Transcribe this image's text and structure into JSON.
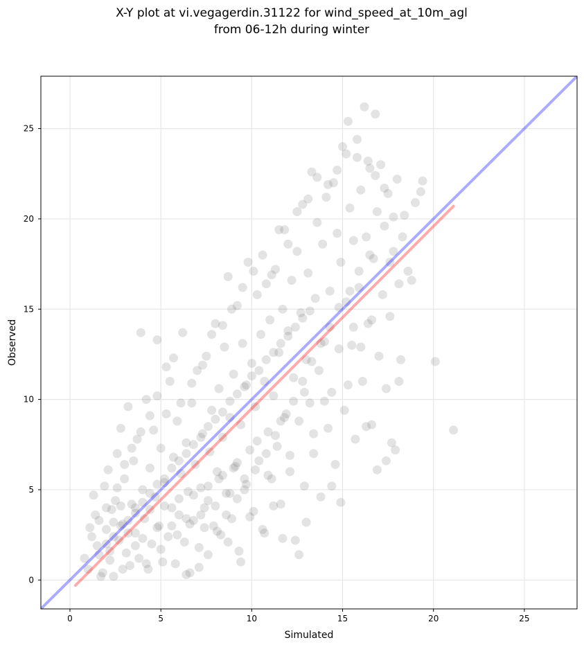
{
  "chart_data": {
    "type": "scatter",
    "title": [
      "X-Y plot at vi.vegagerdin.31122 for wind_speed_at_10m_agl",
      "from 06-12h during winter"
    ],
    "xlabel": "Simulated",
    "ylabel": "Observed",
    "xlim": [
      -1.6,
      27.9
    ],
    "ylim": [
      -1.6,
      27.9
    ],
    "xticks": [
      0,
      5,
      10,
      15,
      20,
      25
    ],
    "yticks": [
      0,
      5,
      10,
      15,
      20,
      25
    ],
    "grid": true,
    "point_color": "#666666",
    "identity_line": {
      "x": [
        -1.6,
        27.9
      ],
      "y": [
        -1.6,
        27.9
      ],
      "color": "#0000ff"
    },
    "fit_line": {
      "x": [
        0.3,
        21.1
      ],
      "y": [
        -0.3,
        20.7
      ],
      "color": "#ff0000"
    },
    "points": [
      [
        0.8,
        1.2
      ],
      [
        1.0,
        0.6
      ],
      [
        1.2,
        2.4
      ],
      [
        1.3,
        4.7
      ],
      [
        1.5,
        1.9
      ],
      [
        1.6,
        3.3
      ],
      [
        1.8,
        0.4
      ],
      [
        1.9,
        5.2
      ],
      [
        2.0,
        2.8
      ],
      [
        2.1,
        6.1
      ],
      [
        2.2,
        1.1
      ],
      [
        2.3,
        3.9
      ],
      [
        2.4,
        0.2
      ],
      [
        2.5,
        4.4
      ],
      [
        2.6,
        7.0
      ],
      [
        2.7,
        2.2
      ],
      [
        2.8,
        8.4
      ],
      [
        2.9,
        3.1
      ],
      [
        3.0,
        5.6
      ],
      [
        3.1,
        1.5
      ],
      [
        3.2,
        9.6
      ],
      [
        3.3,
        0.8
      ],
      [
        3.4,
        4.2
      ],
      [
        3.5,
        6.6
      ],
      [
        3.6,
        2.6
      ],
      [
        3.7,
        7.8
      ],
      [
        3.8,
        1.2
      ],
      [
        3.9,
        13.7
      ],
      [
        4.0,
        5.0
      ],
      [
        4.1,
        3.4
      ],
      [
        4.2,
        10.0
      ],
      [
        4.3,
        0.6
      ],
      [
        4.4,
        6.2
      ],
      [
        4.5,
        2.0
      ],
      [
        4.6,
        8.3
      ],
      [
        4.7,
        4.6
      ],
      [
        4.8,
        13.3
      ],
      [
        4.9,
        3.0
      ],
      [
        5.0,
        7.3
      ],
      [
        5.1,
        1.0
      ],
      [
        5.2,
        5.4
      ],
      [
        5.3,
        9.2
      ],
      [
        5.4,
        2.4
      ],
      [
        5.5,
        11.0
      ],
      [
        5.6,
        4.0
      ],
      [
        5.7,
        6.8
      ],
      [
        5.8,
        0.9
      ],
      [
        5.9,
        8.8
      ],
      [
        6.0,
        3.6
      ],
      [
        6.1,
        5.9
      ],
      [
        6.2,
        13.7
      ],
      [
        6.3,
        2.1
      ],
      [
        6.4,
        7.6
      ],
      [
        6.5,
        4.9
      ],
      [
        6.6,
        0.4
      ],
      [
        6.7,
        9.8
      ],
      [
        6.8,
        3.3
      ],
      [
        6.9,
        6.4
      ],
      [
        7.0,
        11.6
      ],
      [
        7.1,
        1.8
      ],
      [
        7.2,
        5.1
      ],
      [
        7.3,
        8.1
      ],
      [
        7.4,
        2.9
      ],
      [
        7.5,
        12.4
      ],
      [
        7.6,
        4.4
      ],
      [
        7.7,
        7.1
      ],
      [
        7.8,
        9.4
      ],
      [
        7.9,
        3.0
      ],
      [
        8.0,
        14.2
      ],
      [
        8.1,
        6.0
      ],
      [
        8.2,
        10.6
      ],
      [
        8.3,
        2.5
      ],
      [
        8.4,
        7.9
      ],
      [
        8.5,
        12.9
      ],
      [
        8.6,
        4.8
      ],
      [
        8.7,
        16.8
      ],
      [
        8.8,
        9.0
      ],
      [
        8.9,
        3.4
      ],
      [
        9.0,
        11.4
      ],
      [
        9.1,
        6.3
      ],
      [
        9.2,
        15.2
      ],
      [
        9.3,
        1.6
      ],
      [
        9.4,
        8.6
      ],
      [
        9.5,
        13.1
      ],
      [
        9.6,
        5.0
      ],
      [
        9.7,
        10.8
      ],
      [
        9.8,
        17.6
      ],
      [
        9.9,
        7.2
      ],
      [
        10.0,
        12.0
      ],
      [
        10.1,
        3.8
      ],
      [
        10.2,
        9.6
      ],
      [
        10.3,
        15.8
      ],
      [
        10.4,
        6.6
      ],
      [
        10.5,
        13.6
      ],
      [
        10.6,
        2.8
      ],
      [
        10.7,
        11.0
      ],
      [
        10.8,
        16.4
      ],
      [
        10.9,
        8.2
      ],
      [
        11.0,
        14.4
      ],
      [
        11.1,
        5.6
      ],
      [
        11.2,
        10.2
      ],
      [
        11.3,
        17.2
      ],
      [
        11.4,
        7.4
      ],
      [
        11.5,
        12.6
      ],
      [
        11.6,
        4.2
      ],
      [
        11.7,
        15.0
      ],
      [
        11.8,
        19.4
      ],
      [
        11.9,
        9.2
      ],
      [
        12.0,
        13.8
      ],
      [
        12.1,
        6.0
      ],
      [
        12.2,
        16.6
      ],
      [
        12.3,
        11.2
      ],
      [
        12.4,
        2.2
      ],
      [
        12.5,
        18.2
      ],
      [
        12.6,
        8.8
      ],
      [
        12.7,
        14.8
      ],
      [
        12.8,
        20.8
      ],
      [
        12.9,
        5.2
      ],
      [
        13.0,
        12.2
      ],
      [
        13.1,
        17.0
      ],
      [
        13.2,
        9.8
      ],
      [
        13.3,
        22.6
      ],
      [
        13.4,
        7.0
      ],
      [
        13.5,
        15.6
      ],
      [
        13.6,
        19.8
      ],
      [
        13.7,
        11.6
      ],
      [
        13.8,
        4.6
      ],
      [
        13.9,
        18.6
      ],
      [
        14.0,
        13.2
      ],
      [
        14.1,
        21.2
      ],
      [
        14.2,
        8.4
      ],
      [
        14.3,
        16.0
      ],
      [
        14.4,
        10.4
      ],
      [
        14.5,
        22.0
      ],
      [
        14.6,
        6.4
      ],
      [
        14.7,
        19.2
      ],
      [
        14.8,
        12.8
      ],
      [
        14.9,
        17.6
      ],
      [
        15.0,
        24.0
      ],
      [
        15.1,
        9.4
      ],
      [
        15.2,
        15.4
      ],
      [
        15.3,
        25.4
      ],
      [
        15.4,
        20.6
      ],
      [
        15.5,
        13.0
      ],
      [
        15.6,
        18.8
      ],
      [
        15.7,
        7.8
      ],
      [
        15.8,
        23.4
      ],
      [
        15.9,
        16.2
      ],
      [
        16.0,
        21.6
      ],
      [
        16.1,
        11.0
      ],
      [
        16.2,
        26.2
      ],
      [
        16.3,
        19.0
      ],
      [
        16.4,
        14.2
      ],
      [
        16.5,
        22.8
      ],
      [
        16.6,
        8.6
      ],
      [
        16.7,
        17.8
      ],
      [
        16.8,
        25.8
      ],
      [
        16.9,
        20.4
      ],
      [
        17.0,
        12.4
      ],
      [
        17.1,
        23.0
      ],
      [
        17.2,
        15.8
      ],
      [
        17.3,
        19.6
      ],
      [
        17.4,
        10.6
      ],
      [
        17.5,
        21.4
      ],
      [
        17.6,
        14.6
      ],
      [
        17.7,
        7.6
      ],
      [
        17.8,
        18.2
      ],
      [
        18.0,
        22.2
      ],
      [
        18.2,
        12.2
      ],
      [
        18.4,
        20.2
      ],
      [
        18.8,
        16.6
      ],
      [
        19.4,
        22.1
      ],
      [
        19.0,
        20.9
      ],
      [
        20.1,
        12.1
      ],
      [
        21.1,
        8.3
      ],
      [
        16.9,
        6.1
      ],
      [
        17.4,
        6.6
      ],
      [
        18.1,
        11.0
      ],
      [
        17.9,
        7.2
      ],
      [
        16.3,
        8.5
      ],
      [
        14.9,
        4.3
      ],
      [
        14.4,
        5.2
      ],
      [
        13.0,
        3.2
      ],
      [
        12.6,
        1.4
      ],
      [
        11.7,
        2.3
      ],
      [
        11.2,
        4.1
      ],
      [
        10.7,
        2.6
      ],
      [
        9.9,
        3.5
      ],
      [
        9.4,
        1.0
      ],
      [
        8.7,
        2.1
      ],
      [
        10.9,
        5.8
      ],
      [
        12.1,
        6.9
      ],
      [
        13.4,
        8.1
      ],
      [
        14.0,
        9.9
      ],
      [
        15.3,
        10.8
      ],
      [
        16.0,
        12.9
      ],
      [
        16.6,
        14.4
      ],
      [
        17.6,
        17.6
      ],
      [
        18.1,
        16.4
      ],
      [
        15.6,
        14.0
      ],
      [
        12.9,
        10.4
      ],
      [
        11.6,
        8.8
      ],
      [
        10.3,
        7.7
      ],
      [
        9.0,
        6.2
      ],
      [
        8.2,
        5.6
      ],
      [
        7.4,
        4.0
      ],
      [
        6.6,
        3.1
      ],
      [
        5.9,
        2.5
      ],
      [
        5.0,
        1.7
      ],
      [
        4.2,
        0.9
      ],
      [
        3.6,
        1.9
      ],
      [
        2.9,
        0.6
      ],
      [
        2.2,
        1.6
      ],
      [
        1.7,
        0.2
      ],
      [
        1.1,
        2.9
      ],
      [
        1.4,
        3.6
      ],
      [
        2.6,
        5.1
      ],
      [
        3.0,
        6.4
      ],
      [
        3.4,
        7.3
      ],
      [
        3.9,
        8.2
      ],
      [
        4.4,
        9.1
      ],
      [
        4.8,
        10.2
      ],
      [
        5.3,
        11.8
      ],
      [
        5.7,
        12.3
      ],
      [
        6.1,
        9.8
      ],
      [
        6.7,
        10.9
      ],
      [
        7.3,
        11.9
      ],
      [
        7.8,
        13.6
      ],
      [
        8.4,
        14.1
      ],
      [
        8.9,
        15.0
      ],
      [
        9.5,
        16.2
      ],
      [
        10.1,
        17.1
      ],
      [
        10.6,
        18.0
      ],
      [
        11.1,
        16.9
      ],
      [
        11.5,
        19.4
      ],
      [
        12.0,
        18.6
      ],
      [
        12.5,
        20.4
      ],
      [
        13.1,
        21.1
      ],
      [
        13.6,
        22.3
      ],
      [
        14.2,
        21.9
      ],
      [
        14.7,
        22.7
      ],
      [
        15.2,
        23.6
      ],
      [
        15.8,
        24.4
      ],
      [
        16.4,
        23.2
      ],
      [
        16.8,
        22.4
      ],
      [
        17.3,
        21.7
      ],
      [
        17.8,
        20.1
      ],
      [
        18.3,
        19.0
      ],
      [
        18.6,
        17.1
      ],
      [
        19.3,
        21.5
      ],
      [
        6.4,
        0.3
      ],
      [
        7.1,
        0.7
      ],
      [
        7.6,
        1.4
      ],
      [
        8.1,
        2.7
      ],
      [
        8.6,
        3.6
      ],
      [
        9.2,
        4.5
      ],
      [
        9.7,
        5.3
      ],
      [
        10.2,
        6.1
      ],
      [
        10.8,
        7.0
      ],
      [
        11.3,
        8.0
      ],
      [
        11.8,
        9.0
      ],
      [
        12.3,
        9.9
      ],
      [
        12.8,
        11.0
      ],
      [
        13.3,
        12.1
      ],
      [
        13.8,
        13.1
      ],
      [
        14.3,
        14.0
      ],
      [
        14.8,
        15.1
      ],
      [
        15.4,
        16.0
      ],
      [
        15.9,
        17.1
      ],
      [
        16.5,
        18.0
      ],
      [
        2.0,
        4.0
      ],
      [
        2.4,
        3.2
      ],
      [
        2.8,
        4.1
      ],
      [
        3.2,
        2.6
      ],
      [
        3.6,
        3.7
      ],
      [
        4.0,
        2.3
      ],
      [
        4.4,
        3.9
      ],
      [
        4.8,
        2.9
      ],
      [
        5.2,
        4.1
      ],
      [
        5.6,
        3.0
      ],
      [
        6.0,
        4.5
      ],
      [
        6.4,
        3.4
      ],
      [
        6.8,
        4.7
      ],
      [
        7.2,
        3.6
      ],
      [
        7.6,
        5.2
      ],
      [
        8.0,
        4.1
      ],
      [
        8.4,
        5.8
      ],
      [
        8.8,
        4.8
      ],
      [
        9.2,
        6.5
      ],
      [
        9.6,
        5.6
      ],
      [
        1.6,
        1.4
      ],
      [
        2.0,
        2.0
      ],
      [
        2.4,
        2.4
      ],
      [
        2.8,
        3.0
      ],
      [
        3.2,
        3.3
      ],
      [
        3.6,
        4.0
      ],
      [
        4.0,
        4.3
      ],
      [
        4.4,
        4.8
      ],
      [
        4.8,
        5.3
      ],
      [
        5.2,
        5.6
      ],
      [
        5.6,
        6.2
      ],
      [
        6.0,
        6.6
      ],
      [
        6.4,
        7.0
      ],
      [
        6.8,
        7.5
      ],
      [
        7.2,
        7.9
      ],
      [
        7.6,
        8.5
      ],
      [
        8.0,
        8.9
      ],
      [
        8.4,
        9.3
      ],
      [
        8.8,
        9.9
      ],
      [
        9.2,
        10.3
      ],
      [
        9.6,
        10.7
      ],
      [
        10.0,
        11.3
      ],
      [
        10.4,
        11.6
      ],
      [
        10.8,
        12.2
      ],
      [
        11.2,
        12.6
      ],
      [
        11.6,
        13.1
      ],
      [
        12.0,
        13.5
      ],
      [
        12.4,
        14.0
      ],
      [
        12.8,
        14.5
      ],
      [
        13.2,
        14.9
      ]
    ]
  }
}
